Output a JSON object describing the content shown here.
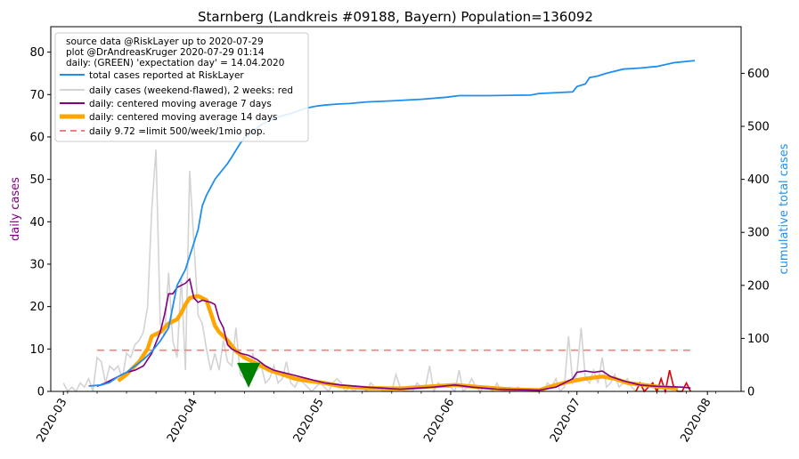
{
  "chart_data": {
    "type": "line",
    "title": "Starnberg (Landkreis #09188, Bayern) Population=136092",
    "ylabel_left": "daily cases",
    "ylabel_right": "cumulative total cases",
    "ylim_left": [
      0,
      86
    ],
    "ylim_right": [
      0,
      688
    ],
    "y_ticks_left": [
      0,
      10,
      20,
      30,
      40,
      50,
      60,
      70,
      80
    ],
    "y_ticks_right": [
      0,
      100,
      200,
      300,
      400,
      500,
      600
    ],
    "xlim": [
      "2020-02-27",
      "2020-08-09"
    ],
    "x_ticks": [
      {
        "date": "2020-03-01",
        "label": "2020-03"
      },
      {
        "date": "2020-04-01",
        "label": "2020-04"
      },
      {
        "date": "2020-05-01",
        "label": "2020-05"
      },
      {
        "date": "2020-06-01",
        "label": "2020-06"
      },
      {
        "date": "2020-07-01",
        "label": "2020-07"
      },
      {
        "date": "2020-08-01",
        "label": "2020-08"
      }
    ],
    "grid": false,
    "legend_position": "top-left",
    "info_lines": [
      "source data @RiskLayer up to 2020-07-29",
      "plot @DrAndreasKruger 2020-07-29 01:14",
      "daily: (GREEN) 'expectation day' = 14.04.2020"
    ],
    "expectation_day": "2020-04-14",
    "limit_value": 9.72,
    "limit_range": [
      "2020-03-09",
      "2020-07-28"
    ],
    "series": [
      {
        "name": "total cases reported at RiskLayer",
        "color": "#1e8ff0",
        "axis": "right",
        "points": [
          [
            "2020-03-07",
            10
          ],
          [
            "2020-03-10",
            12
          ],
          [
            "2020-03-12",
            17
          ],
          [
            "2020-03-14",
            28
          ],
          [
            "2020-03-16",
            36
          ],
          [
            "2020-03-18",
            48
          ],
          [
            "2020-03-20",
            60
          ],
          [
            "2020-03-22",
            75
          ],
          [
            "2020-03-24",
            95
          ],
          [
            "2020-03-26",
            120
          ],
          [
            "2020-03-27",
            160
          ],
          [
            "2020-03-28",
            200
          ],
          [
            "2020-03-29",
            215
          ],
          [
            "2020-03-30",
            230
          ],
          [
            "2020-03-31",
            255
          ],
          [
            "2020-04-01",
            280
          ],
          [
            "2020-04-02",
            305
          ],
          [
            "2020-04-03",
            350
          ],
          [
            "2020-04-04",
            370
          ],
          [
            "2020-04-05",
            385
          ],
          [
            "2020-04-06",
            400
          ],
          [
            "2020-04-07",
            410
          ],
          [
            "2020-04-08",
            420
          ],
          [
            "2020-04-09",
            430
          ],
          [
            "2020-04-10",
            442
          ],
          [
            "2020-04-11",
            455
          ],
          [
            "2020-04-12",
            468
          ],
          [
            "2020-04-13",
            478
          ],
          [
            "2020-04-14",
            483
          ],
          [
            "2020-04-15",
            490
          ],
          [
            "2020-04-16",
            497
          ],
          [
            "2020-04-17",
            503
          ],
          [
            "2020-04-18",
            507
          ],
          [
            "2020-04-20",
            515
          ],
          [
            "2020-04-22",
            520
          ],
          [
            "2020-04-24",
            524
          ],
          [
            "2020-04-26",
            530
          ],
          [
            "2020-04-28",
            535
          ],
          [
            "2020-04-30",
            538
          ],
          [
            "2020-05-02",
            540
          ],
          [
            "2020-05-05",
            542
          ],
          [
            "2020-05-08",
            543
          ],
          [
            "2020-05-12",
            546
          ],
          [
            "2020-05-18",
            548
          ],
          [
            "2020-05-25",
            551
          ],
          [
            "2020-05-31",
            555
          ],
          [
            "2020-06-03",
            558
          ],
          [
            "2020-06-10",
            558
          ],
          [
            "2020-06-20",
            559
          ],
          [
            "2020-06-22",
            562
          ],
          [
            "2020-06-30",
            565
          ],
          [
            "2020-07-01",
            575
          ],
          [
            "2020-07-03",
            580
          ],
          [
            "2020-07-04",
            592
          ],
          [
            "2020-07-06",
            595
          ],
          [
            "2020-07-08",
            600
          ],
          [
            "2020-07-12",
            608
          ],
          [
            "2020-07-16",
            610
          ],
          [
            "2020-07-20",
            613
          ],
          [
            "2020-07-24",
            620
          ],
          [
            "2020-07-29",
            624
          ]
        ]
      },
      {
        "name": "daily cases (weekend-flawed), 2 weeks: red",
        "color": "#d3d3d3",
        "recent_color": "#e00000",
        "axis": "left",
        "values": [
          2,
          0,
          1,
          0,
          2,
          1,
          3,
          0,
          8,
          7,
          2,
          6,
          5,
          6,
          3,
          9,
          8,
          11,
          12,
          14,
          20,
          43,
          57,
          16,
          13,
          28,
          12,
          8,
          27,
          5,
          52,
          35,
          18,
          16,
          10,
          5,
          9,
          5,
          12,
          7,
          6,
          15,
          4,
          3,
          3,
          9,
          5,
          6,
          2,
          3,
          6,
          2,
          3,
          7,
          2,
          1,
          3,
          2,
          1,
          0,
          1,
          2,
          1,
          0,
          2,
          3,
          2,
          0,
          1,
          0,
          1,
          1,
          0,
          2,
          1,
          1,
          0,
          0,
          0,
          4,
          1,
          0,
          0,
          0,
          2,
          1,
          1,
          6,
          0,
          2,
          1,
          1,
          1,
          0,
          5,
          0,
          1,
          3,
          1,
          0,
          1,
          1,
          0,
          2,
          0,
          0,
          1,
          0,
          1,
          0,
          0,
          0,
          0,
          0,
          0,
          2,
          1,
          3,
          0,
          1,
          13,
          2,
          4,
          15,
          3,
          2,
          5,
          2,
          8,
          1,
          2,
          4,
          1,
          2,
          3,
          1,
          0,
          2,
          0,
          1,
          2,
          0,
          3,
          0,
          5,
          1,
          0,
          0,
          2,
          0
        ]
      },
      {
        "name": "daily: centered moving average 7 days",
        "color": "#800080",
        "axis": "left",
        "points": [
          [
            "2020-03-09",
            1.2
          ],
          [
            "2020-03-11",
            2.0
          ],
          [
            "2020-03-13",
            3.0
          ],
          [
            "2020-03-14",
            3.5
          ],
          [
            "2020-03-16",
            4.5
          ],
          [
            "2020-03-18",
            5.0
          ],
          [
            "2020-03-20",
            6.0
          ],
          [
            "2020-03-22",
            9.0
          ],
          [
            "2020-03-24",
            14.0
          ],
          [
            "2020-03-25",
            18.0
          ],
          [
            "2020-03-26",
            23.0
          ],
          [
            "2020-03-27",
            23.0
          ],
          [
            "2020-03-28",
            24.5
          ],
          [
            "2020-03-29",
            25.0
          ],
          [
            "2020-03-30",
            25.5
          ],
          [
            "2020-03-31",
            26.5
          ],
          [
            "2020-04-01",
            22.0
          ],
          [
            "2020-04-02",
            21.0
          ],
          [
            "2020-04-03",
            21.5
          ],
          [
            "2020-04-05",
            21.0
          ],
          [
            "2020-04-06",
            20.5
          ],
          [
            "2020-04-07",
            17.0
          ],
          [
            "2020-04-08",
            15.0
          ],
          [
            "2020-04-09",
            11.0
          ],
          [
            "2020-04-10",
            10.0
          ],
          [
            "2020-04-12",
            9.0
          ],
          [
            "2020-04-14",
            8.5
          ],
          [
            "2020-04-16",
            7.5
          ],
          [
            "2020-04-18",
            6.0
          ],
          [
            "2020-04-20",
            5.0
          ],
          [
            "2020-04-24",
            4.0
          ],
          [
            "2020-04-28",
            3.0
          ],
          [
            "2020-05-02",
            2.0
          ],
          [
            "2020-05-06",
            1.5
          ],
          [
            "2020-05-12",
            1.0
          ],
          [
            "2020-05-20",
            0.5
          ],
          [
            "2020-05-28",
            1.0
          ],
          [
            "2020-06-02",
            1.5
          ],
          [
            "2020-06-06",
            1.0
          ],
          [
            "2020-06-12",
            0.5
          ],
          [
            "2020-06-22",
            0.3
          ],
          [
            "2020-06-26",
            1.0
          ],
          [
            "2020-06-30",
            3.0
          ],
          [
            "2020-07-01",
            4.5
          ],
          [
            "2020-07-03",
            4.8
          ],
          [
            "2020-07-05",
            4.5
          ],
          [
            "2020-07-07",
            4.8
          ],
          [
            "2020-07-09",
            3.5
          ],
          [
            "2020-07-12",
            2.5
          ],
          [
            "2020-07-16",
            1.5
          ],
          [
            "2020-07-20",
            1.2
          ],
          [
            "2020-07-26",
            1.0
          ],
          [
            "2020-07-28",
            0.8
          ]
        ]
      },
      {
        "name": "daily: centered moving average 14 days",
        "color": "#ffa500",
        "axis": "left",
        "points": [
          [
            "2020-03-14",
            2.5
          ],
          [
            "2020-03-16",
            4.0
          ],
          [
            "2020-03-19",
            7.0
          ],
          [
            "2020-03-21",
            10.0
          ],
          [
            "2020-03-22",
            13.0
          ],
          [
            "2020-03-23",
            13.5
          ],
          [
            "2020-03-24",
            14.0
          ],
          [
            "2020-03-26",
            16.0
          ],
          [
            "2020-03-28",
            17.0
          ],
          [
            "2020-03-29",
            18.5
          ],
          [
            "2020-03-30",
            20.5
          ],
          [
            "2020-03-31",
            22.0
          ],
          [
            "2020-04-02",
            22.5
          ],
          [
            "2020-04-04",
            21.5
          ],
          [
            "2020-04-05",
            18.5
          ],
          [
            "2020-04-06",
            15.5
          ],
          [
            "2020-04-07",
            14.0
          ],
          [
            "2020-04-08",
            13.0
          ],
          [
            "2020-04-09",
            12.0
          ],
          [
            "2020-04-11",
            9.5
          ],
          [
            "2020-04-13",
            8.0
          ],
          [
            "2020-04-15",
            7.0
          ],
          [
            "2020-04-17",
            6.0
          ],
          [
            "2020-04-19",
            5.0
          ],
          [
            "2020-04-22",
            4.0
          ],
          [
            "2020-04-25",
            3.0
          ],
          [
            "2020-04-28",
            2.5
          ],
          [
            "2020-05-02",
            2.0
          ],
          [
            "2020-05-06",
            1.2
          ],
          [
            "2020-05-12",
            0.8
          ],
          [
            "2020-05-20",
            0.7
          ],
          [
            "2020-05-28",
            1.2
          ],
          [
            "2020-06-02",
            1.5
          ],
          [
            "2020-06-08",
            1.0
          ],
          [
            "2020-06-15",
            0.5
          ],
          [
            "2020-06-22",
            0.3
          ],
          [
            "2020-06-26",
            1.5
          ],
          [
            "2020-06-30",
            2.5
          ],
          [
            "2020-07-03",
            3.0
          ],
          [
            "2020-07-07",
            3.5
          ],
          [
            "2020-07-10",
            3.0
          ],
          [
            "2020-07-13",
            2.0
          ],
          [
            "2020-07-17",
            1.5
          ],
          [
            "2020-07-21",
            1.0
          ],
          [
            "2020-07-25",
            0.7
          ]
        ]
      },
      {
        "name": "daily 9.72 =limit 500/week/1mio pop.",
        "color": "#f08080",
        "axis": "left"
      }
    ]
  }
}
